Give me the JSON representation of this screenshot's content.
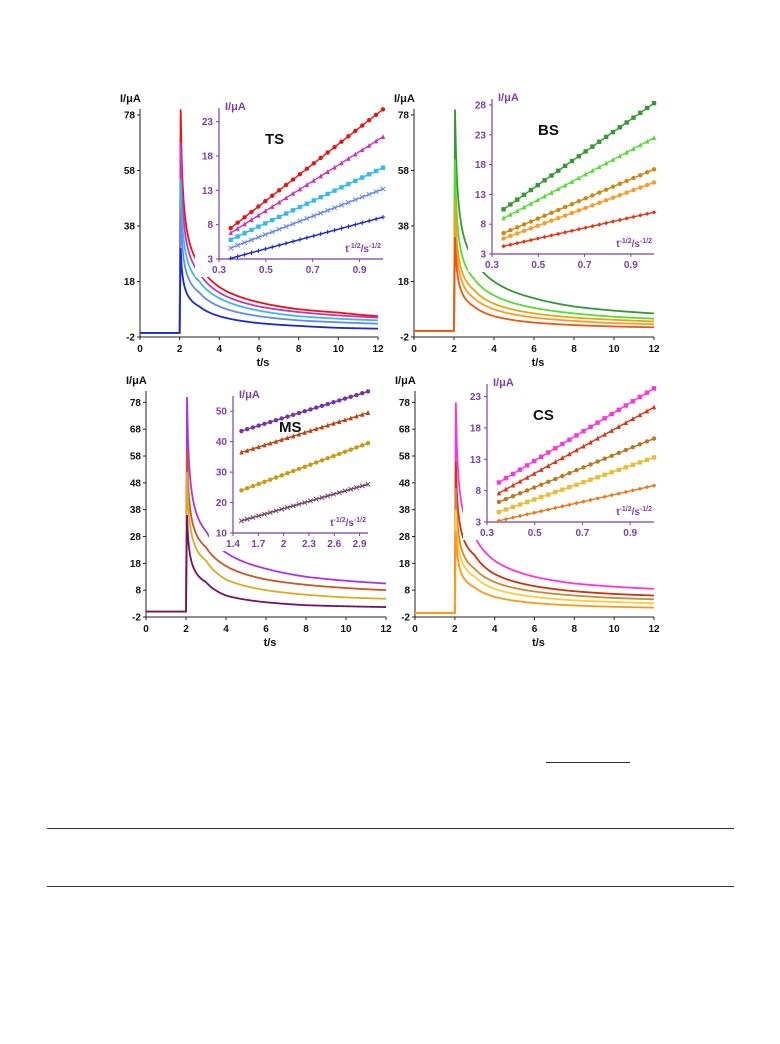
{
  "chart_data": [
    {
      "type": "line",
      "panel": "TS",
      "xlabel": "t/s",
      "ylabel": "I/μA",
      "xlim": [
        0,
        12
      ],
      "ylim": [
        -2,
        78
      ],
      "xticks": [
        0,
        2,
        4,
        6,
        8,
        10,
        12
      ],
      "yticks": [
        -2,
        18,
        38,
        58,
        78
      ],
      "step_time": 2,
      "series": [
        {
          "color": "#ee1111",
          "values_at_t": {
            "2.05": 80,
            "3": 24,
            "4": 16,
            "6": 10.5,
            "8": 8,
            "10": 6.8,
            "12": 5.5
          }
        },
        {
          "color": "#cc33bb",
          "values_at_t": {
            "2.05": 68,
            "3": 21,
            "4": 14,
            "6": 9,
            "8": 7,
            "10": 5.8,
            "12": 5
          }
        },
        {
          "color": "#33bbee",
          "values_at_t": {
            "2.05": 55,
            "3": 18,
            "4": 12,
            "6": 7.5,
            "8": 5.5,
            "10": 4.6,
            "12": 4
          }
        },
        {
          "color": "#6688ee",
          "values_at_t": {
            "2.05": 44,
            "3": 14,
            "4": 9,
            "6": 5.5,
            "8": 4,
            "10": 3.3,
            "12": 2.8
          }
        },
        {
          "color": "#1a2acc",
          "values_at_t": {
            "2.05": 30,
            "3": 9,
            "4": 5.5,
            "6": 3,
            "8": 2,
            "10": 1.3,
            "12": 1
          }
        }
      ],
      "baseline": -0.5,
      "inset": {
        "title": "TS",
        "xlabel": "t^-1/2/s^-1/2",
        "ylabel": "I/μA",
        "xlim": [
          0.3,
          1.0
        ],
        "ylim": [
          3,
          25
        ],
        "xticks": [
          0.3,
          0.5,
          0.7,
          0.9
        ],
        "yticks": [
          3,
          8,
          13,
          18,
          23
        ],
        "lines": [
          {
            "color": "#ee1111",
            "marker": "circle",
            "points": [
              [
                0.35,
                7.5
              ],
              [
                1.0,
                24.8
              ]
            ]
          },
          {
            "color": "#cc33bb",
            "marker": "triangle",
            "points": [
              [
                0.35,
                6.8
              ],
              [
                1.0,
                20.8
              ]
            ]
          },
          {
            "color": "#33bbee",
            "marker": "square",
            "points": [
              [
                0.35,
                5.8
              ],
              [
                1.0,
                16.3
              ]
            ]
          },
          {
            "color": "#6688ee",
            "marker": "x",
            "points": [
              [
                0.35,
                4.6
              ],
              [
                1.0,
                13.2
              ]
            ]
          },
          {
            "color": "#1a2acc",
            "marker": "plus",
            "points": [
              [
                0.35,
                3.1
              ],
              [
                1.0,
                9.1
              ]
            ]
          }
        ]
      }
    },
    {
      "type": "line",
      "panel": "BS",
      "xlabel": "t/s",
      "ylabel": "I/μA",
      "xlim": [
        0,
        12
      ],
      "ylim": [
        -2,
        78
      ],
      "xticks": [
        0,
        2,
        4,
        6,
        8,
        10,
        12
      ],
      "yticks": [
        -2,
        18,
        38,
        58,
        78
      ],
      "step_time": 2,
      "series": [
        {
          "color": "#339933",
          "values_at_t": {
            "2.05": 82,
            "3": 26,
            "4": 18,
            "6": 12,
            "8": 9,
            "10": 7.5,
            "12": 6.5
          }
        },
        {
          "color": "#55dd33",
          "values_at_t": {
            "2.05": 62,
            "3": 19,
            "4": 13,
            "6": 8.5,
            "8": 6.5,
            "10": 5.3,
            "12": 4.6
          }
        },
        {
          "color": "#ddaa11",
          "values_at_t": {
            "2.05": 48,
            "3": 15,
            "4": 10,
            "6": 6.5,
            "8": 5,
            "10": 4.2,
            "12": 3.6
          }
        },
        {
          "color": "#ff9922",
          "values_at_t": {
            "2.05": 42,
            "3": 12,
            "4": 8,
            "6": 5,
            "8": 3.8,
            "10": 3,
            "12": 2.6
          }
        },
        {
          "color": "#ee5511",
          "values_at_t": {
            "2.05": 34,
            "3": 9,
            "4": 5.5,
            "6": 3.2,
            "8": 2.3,
            "10": 1.8,
            "12": 1.5
          }
        }
      ],
      "baseline": 0.2,
      "inset": {
        "title": "BS",
        "xlabel": "t^-1/2/s^-1/2",
        "ylabel": "I/μA",
        "xlim": [
          0.3,
          1.0
        ],
        "ylim": [
          3,
          29
        ],
        "xticks": [
          0.3,
          0.5,
          0.7,
          0.9
        ],
        "yticks": [
          3,
          8,
          13,
          18,
          23,
          28
        ],
        "lines": [
          {
            "color": "#339933",
            "marker": "square",
            "points": [
              [
                0.35,
                10.5
              ],
              [
                1.0,
                28.3
              ]
            ]
          },
          {
            "color": "#55dd33",
            "marker": "triangle",
            "points": [
              [
                0.35,
                9.0
              ],
              [
                1.0,
                22.5
              ]
            ]
          },
          {
            "color": "#cc8811",
            "marker": "circle",
            "points": [
              [
                0.35,
                6.5
              ],
              [
                1.0,
                17.2
              ]
            ]
          },
          {
            "color": "#ff9922",
            "marker": "circle",
            "points": [
              [
                0.35,
                5.6
              ],
              [
                1.0,
                15.0
              ]
            ]
          },
          {
            "color": "#ee3311",
            "marker": "diamond",
            "points": [
              [
                0.35,
                4.3
              ],
              [
                1.0,
                10.0
              ]
            ]
          }
        ]
      }
    },
    {
      "type": "line",
      "panel": "MS",
      "xlabel": "t/s",
      "ylabel": "I/μA",
      "xlim": [
        0,
        12
      ],
      "ylim": [
        -2,
        80
      ],
      "xticks": [
        0,
        2,
        4,
        6,
        8,
        10,
        12
      ],
      "yticks": [
        -2,
        8,
        18,
        28,
        38,
        48,
        58,
        68,
        78
      ],
      "step_time": 2,
      "series": [
        {
          "color": "#aa33ee",
          "values_at_t": {
            "2.05": 80,
            "3": 30,
            "4": 22,
            "6": 16,
            "8": 13,
            "10": 11.5,
            "12": 10.5
          }
        },
        {
          "color": "#cc5522",
          "values_at_t": {
            "2.05": 60,
            "3": 24,
            "4": 17,
            "6": 12,
            "8": 10,
            "10": 8.8,
            "12": 8
          }
        },
        {
          "color": "#ddaa22",
          "values_at_t": {
            "2.05": 52,
            "3": 19,
            "4": 12,
            "6": 8,
            "8": 6.3,
            "10": 5.3,
            "12": 4.8
          }
        },
        {
          "color": "#771166",
          "values_at_t": {
            "2.05": 36,
            "3": 11,
            "4": 6,
            "6": 3.5,
            "8": 2.4,
            "10": 2,
            "12": 1.7
          }
        }
      ],
      "baseline": 0,
      "inset": {
        "title": "MS",
        "xlabel": "t^-1/2/s^-1/2",
        "ylabel": "I/μA",
        "xlim": [
          1.4,
          3.0
        ],
        "ylim": [
          10,
          55
        ],
        "xticks": [
          1.4,
          1.7,
          2.0,
          2.3,
          2.6,
          2.9
        ],
        "yticks": [
          10,
          20,
          30,
          40,
          50
        ],
        "xtick_labels": [
          "1.4",
          "1.7",
          "2",
          "2.3",
          "2.6",
          "2.9"
        ],
        "lines": [
          {
            "color": "#7733aa",
            "marker": "circle",
            "points": [
              [
                1.5,
                43.5
              ],
              [
                3.0,
                56.5
              ]
            ]
          },
          {
            "color": "#bb4411",
            "marker": "triangle",
            "points": [
              [
                1.5,
                36.5
              ],
              [
                3.0,
                49.5
              ]
            ]
          },
          {
            "color": "#cc9911",
            "marker": "circle",
            "points": [
              [
                1.5,
                24
              ],
              [
                3.0,
                39.5
              ]
            ]
          },
          {
            "color": "#774466",
            "marker": "x",
            "points": [
              [
                1.5,
                14
              ],
              [
                3.0,
                26
              ]
            ]
          }
        ]
      }
    },
    {
      "type": "line",
      "panel": "CS",
      "xlabel": "t/s",
      "ylabel": "I/μA",
      "xlim": [
        0,
        12
      ],
      "ylim": [
        -2,
        80
      ],
      "xticks": [
        0,
        2,
        4,
        6,
        8,
        10,
        12
      ],
      "yticks": [
        -2,
        8,
        18,
        28,
        38,
        48,
        58,
        68,
        78
      ],
      "step_time": 2,
      "series": [
        {
          "color": "#ff33dd",
          "values_at_t": {
            "2.05": 78,
            "3": 28,
            "4": 19,
            "6": 13,
            "8": 10.5,
            "10": 9.3,
            "12": 8.5
          }
        },
        {
          "color": "#cc3311",
          "values_at_t": {
            "2.05": 56,
            "3": 21,
            "4": 14,
            "6": 9.5,
            "8": 7.6,
            "10": 6.6,
            "12": 6
          }
        },
        {
          "color": "#cc8833",
          "values_at_t": {
            "2.05": 46,
            "3": 16,
            "4": 11,
            "6": 7.5,
            "8": 6,
            "10": 5.1,
            "12": 4.6
          }
        },
        {
          "color": "#ffcc33",
          "values_at_t": {
            "2.05": 38,
            "3": 13,
            "4": 8.5,
            "6": 5.5,
            "8": 4.2,
            "10": 3.6,
            "12": 3.1
          }
        },
        {
          "color": "#ff9911",
          "values_at_t": {
            "2.05": 30,
            "3": 9,
            "4": 5.5,
            "6": 3.2,
            "8": 2.3,
            "10": 1.8,
            "12": 1.5
          }
        }
      ],
      "baseline": -0.5,
      "inset": {
        "title": "CS",
        "xlabel": "t^-1/2/s^-1/2",
        "ylabel": "I/μA",
        "xlim": [
          0.3,
          1.0
        ],
        "ylim": [
          3,
          25
        ],
        "xticks": [
          0.3,
          0.5,
          0.7,
          0.9
        ],
        "yticks": [
          3,
          8,
          13,
          18,
          23
        ],
        "lines": [
          {
            "color": "#ff33dd",
            "marker": "square",
            "points": [
              [
                0.35,
                9.3
              ],
              [
                1.0,
                24.3
              ]
            ]
          },
          {
            "color": "#dd3311",
            "marker": "triangle",
            "points": [
              [
                0.35,
                7.6
              ],
              [
                1.0,
                21.3
              ]
            ]
          },
          {
            "color": "#bb7722",
            "marker": "circle",
            "points": [
              [
                0.35,
                6.2
              ],
              [
                1.0,
                16.3
              ]
            ]
          },
          {
            "color": "#eebb33",
            "marker": "square",
            "points": [
              [
                0.35,
                4.6
              ],
              [
                1.0,
                13.3
              ]
            ]
          },
          {
            "color": "#ee7711",
            "marker": "diamond",
            "points": [
              [
                0.35,
                3.2
              ],
              [
                1.0,
                8.8
              ]
            ]
          }
        ]
      }
    }
  ]
}
